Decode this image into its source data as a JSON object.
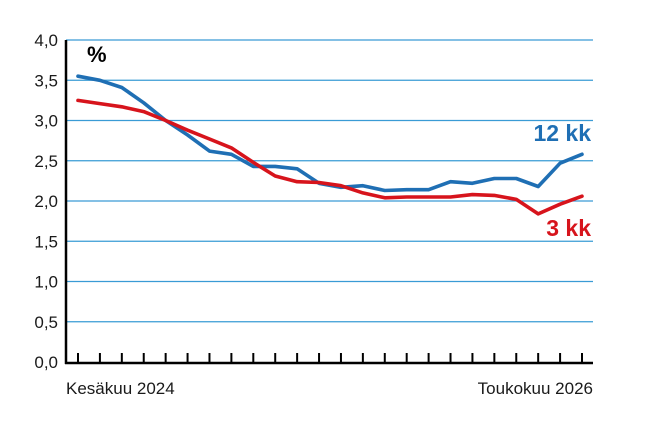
{
  "chart_data": {
    "type": "line",
    "unit_label": "%",
    "x_start_label": "Kesäkuu 2024",
    "x_end_label": "Toukokuu 2026",
    "ylim": [
      0,
      4.0
    ],
    "yticks": [
      "0,0",
      "0,5",
      "1,0",
      "1,5",
      "2,0",
      "2,5",
      "3,0",
      "3,5",
      "4,0"
    ],
    "grid": true,
    "n_points": 24,
    "series": [
      {
        "name": "12 kk",
        "color": "#1f6fb4",
        "values": [
          3.55,
          3.5,
          3.41,
          3.22,
          3.0,
          2.82,
          2.62,
          2.58,
          2.43,
          2.43,
          2.4,
          2.22,
          2.17,
          2.19,
          2.13,
          2.14,
          2.14,
          2.24,
          2.22,
          2.28,
          2.28,
          2.18,
          2.47,
          2.58
        ]
      },
      {
        "name": "3 kk",
        "color": "#d7141c",
        "values": [
          3.25,
          3.21,
          3.17,
          3.11,
          3.0,
          2.88,
          2.77,
          2.66,
          2.48,
          2.31,
          2.24,
          2.23,
          2.19,
          2.1,
          2.04,
          2.05,
          2.05,
          2.05,
          2.08,
          2.07,
          2.02,
          1.84,
          1.96,
          2.06
        ]
      }
    ]
  }
}
